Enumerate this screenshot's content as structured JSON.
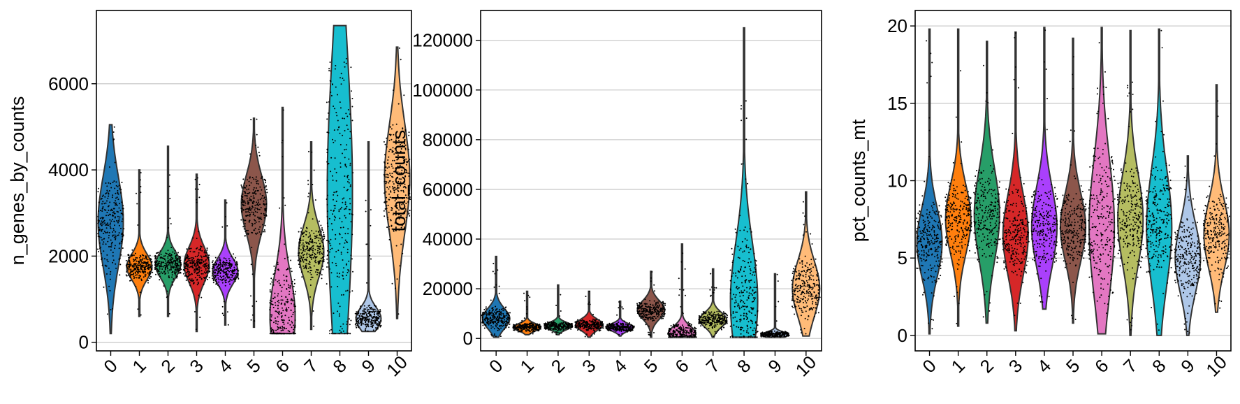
{
  "chart_data": [
    {
      "type": "violin",
      "ylabel": "n_genes_by_counts",
      "categories": [
        "0",
        "1",
        "2",
        "3",
        "4",
        "5",
        "6",
        "7",
        "8",
        "9",
        "10"
      ],
      "yticks": [
        0,
        2000,
        4000,
        6000
      ],
      "ylim": [
        -200,
        7700
      ],
      "grid": true,
      "violins": [
        {
          "min": 200,
          "max": 5050,
          "median": 2800,
          "q1": 2000,
          "q3": 3400
        },
        {
          "min": 600,
          "max": 4000,
          "median": 1750,
          "q1": 1550,
          "q3": 1950
        },
        {
          "min": 600,
          "max": 4550,
          "median": 1800,
          "q1": 1600,
          "q3": 2000
        },
        {
          "min": 250,
          "max": 3900,
          "median": 1800,
          "q1": 1500,
          "q3": 2050
        },
        {
          "min": 400,
          "max": 3300,
          "median": 1650,
          "q1": 1450,
          "q3": 1850
        },
        {
          "min": 350,
          "max": 5200,
          "median": 3200,
          "q1": 2700,
          "q3": 3600
        },
        {
          "min": 200,
          "max": 5450,
          "median": 600,
          "q1": 350,
          "q3": 1700
        },
        {
          "min": 300,
          "max": 4650,
          "median": 2100,
          "q1": 1700,
          "q3": 2500
        },
        {
          "min": 200,
          "max": 7350,
          "median": 3500,
          "q1": 700,
          "q3": 5000
        },
        {
          "min": 250,
          "max": 4650,
          "median": 550,
          "q1": 400,
          "q3": 750
        },
        {
          "min": 550,
          "max": 6850,
          "median": 3800,
          "q1": 2800,
          "q3": 4500
        }
      ]
    },
    {
      "type": "violin",
      "ylabel": "total_counts",
      "categories": [
        "0",
        "1",
        "2",
        "3",
        "4",
        "5",
        "6",
        "7",
        "8",
        "9",
        "10"
      ],
      "yticks": [
        0,
        20000,
        40000,
        60000,
        80000,
        100000,
        120000
      ],
      "ylim": [
        -5000,
        132000
      ],
      "grid": true,
      "violins": [
        {
          "min": 500,
          "max": 33000,
          "median": 8000,
          "q1": 5500,
          "q3": 11000
        },
        {
          "min": 1500,
          "max": 19000,
          "median": 4500,
          "q1": 3500,
          "q3": 5500
        },
        {
          "min": 1500,
          "max": 21500,
          "median": 5000,
          "q1": 4000,
          "q3": 6000
        },
        {
          "min": 500,
          "max": 19000,
          "median": 5500,
          "q1": 4000,
          "q3": 7000
        },
        {
          "min": 1000,
          "max": 15000,
          "median": 4500,
          "q1": 3500,
          "q3": 5500
        },
        {
          "min": 500,
          "max": 27000,
          "median": 11500,
          "q1": 9000,
          "q3": 14000
        },
        {
          "min": 500,
          "max": 38000,
          "median": 2000,
          "q1": 1000,
          "q3": 5000
        },
        {
          "min": 500,
          "max": 28000,
          "median": 7500,
          "q1": 5500,
          "q3": 9500
        },
        {
          "min": 500,
          "max": 125000,
          "median": 15000,
          "q1": 3000,
          "q3": 35000
        },
        {
          "min": 500,
          "max": 26000,
          "median": 1500,
          "q1": 1000,
          "q3": 2500
        },
        {
          "min": 1000,
          "max": 59000,
          "median": 20000,
          "q1": 13000,
          "q3": 28000
        }
      ]
    },
    {
      "type": "violin",
      "ylabel": "pct_counts_mt",
      "categories": [
        "0",
        "1",
        "2",
        "3",
        "4",
        "5",
        "6",
        "7",
        "8",
        "9",
        "10"
      ],
      "yticks": [
        0,
        5,
        10,
        15,
        20
      ],
      "ylim": [
        -1,
        21
      ],
      "grid": true,
      "violins": [
        {
          "min": 0.1,
          "max": 19.8,
          "median": 6.0,
          "q1": 4.5,
          "q3": 7.5
        },
        {
          "min": 0.6,
          "max": 19.8,
          "median": 7.5,
          "q1": 6.0,
          "q3": 9.0
        },
        {
          "min": 0.8,
          "max": 19.0,
          "median": 7.8,
          "q1": 6.0,
          "q3": 10.0
        },
        {
          "min": 0.3,
          "max": 19.6,
          "median": 6.5,
          "q1": 5.0,
          "q3": 8.5
        },
        {
          "min": 1.7,
          "max": 19.9,
          "median": 7.0,
          "q1": 5.5,
          "q3": 9.0
        },
        {
          "min": 0.8,
          "max": 19.2,
          "median": 7.0,
          "q1": 5.5,
          "q3": 8.5
        },
        {
          "min": 0.1,
          "max": 19.9,
          "median": 7.0,
          "q1": 4.5,
          "q3": 10.5
        },
        {
          "min": 0.0,
          "max": 19.7,
          "median": 7.5,
          "q1": 5.5,
          "q3": 9.5
        },
        {
          "min": 0.0,
          "max": 19.8,
          "median": 7.0,
          "q1": 5.0,
          "q3": 10.0
        },
        {
          "min": 0.0,
          "max": 11.6,
          "median": 5.0,
          "q1": 3.5,
          "q3": 6.5
        },
        {
          "min": 1.5,
          "max": 16.2,
          "median": 6.5,
          "q1": 5.0,
          "q3": 8.0
        }
      ]
    }
  ],
  "colors": [
    "#1f77b4",
    "#ff7f0e",
    "#279e68",
    "#d62728",
    "#aa40fc",
    "#8c564b",
    "#e377c2",
    "#b5bd61",
    "#17becf",
    "#aec7e8",
    "#ffbb78"
  ]
}
